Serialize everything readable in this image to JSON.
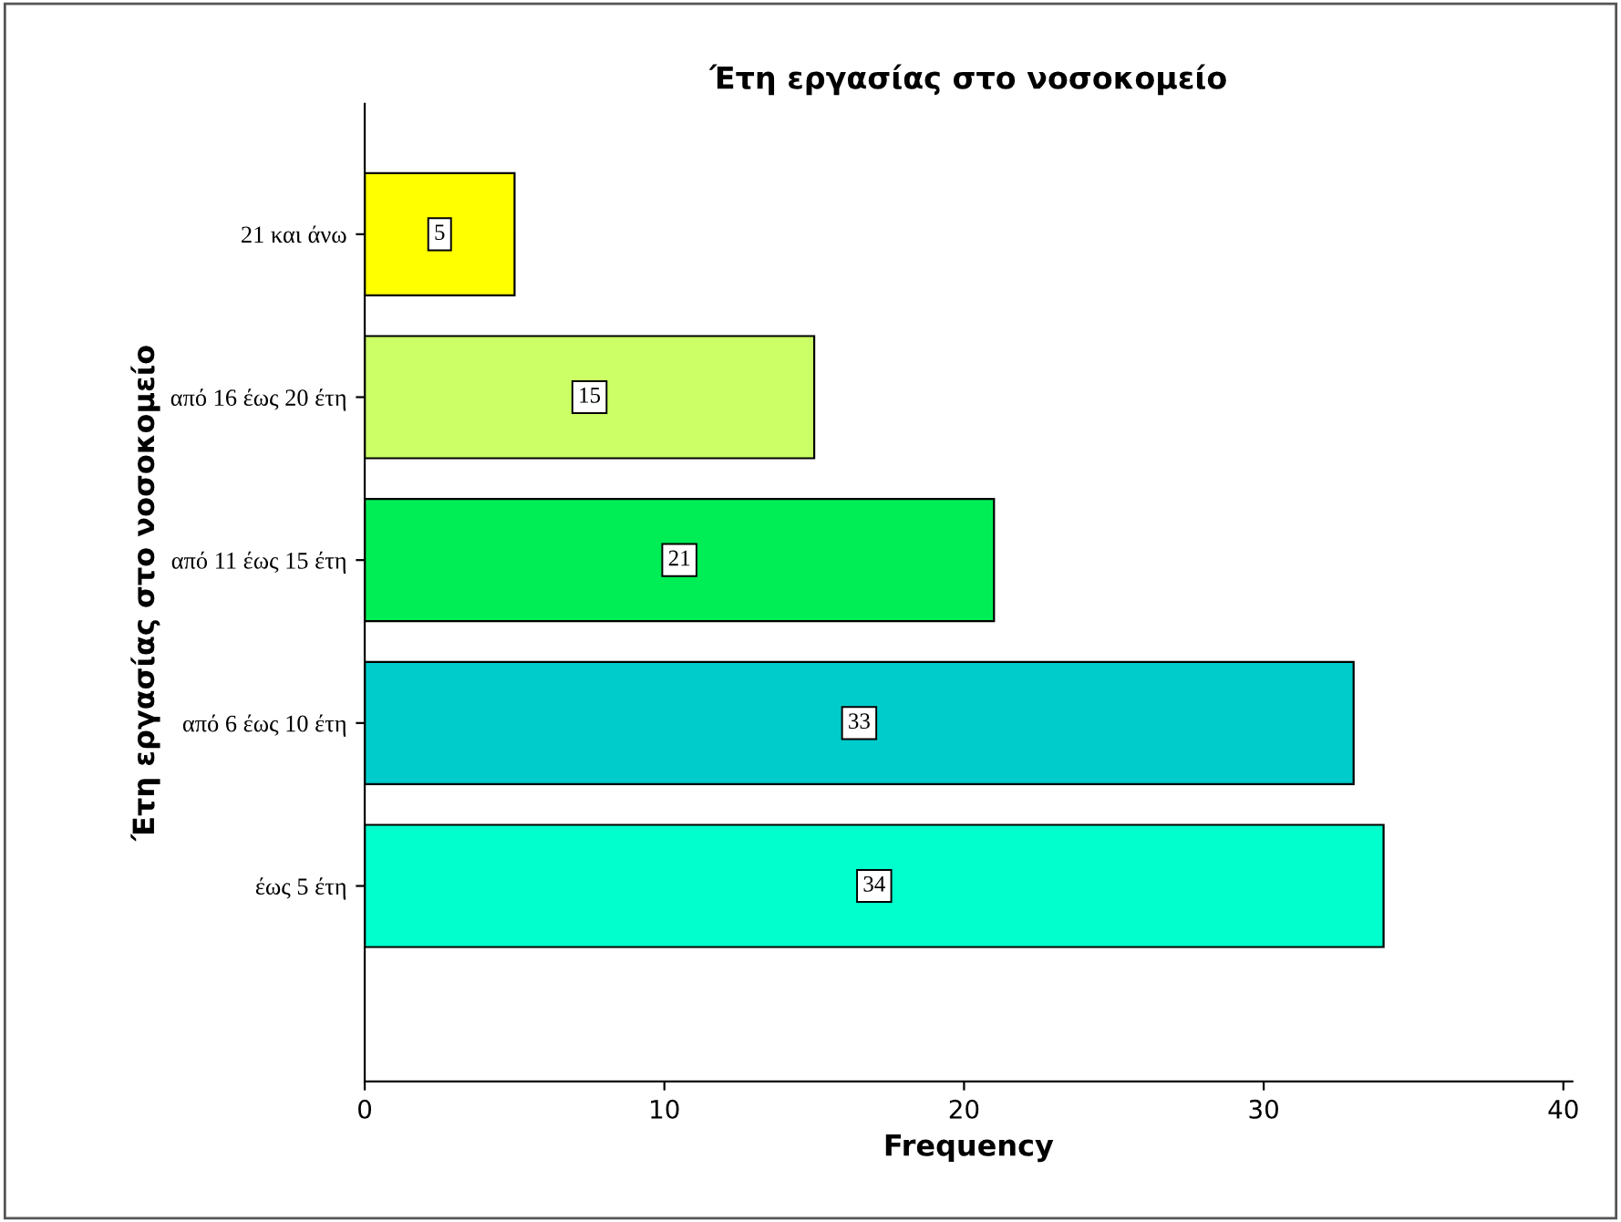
{
  "chart_data": {
    "type": "bar",
    "orientation": "horizontal",
    "title": "Έτη εργασίας στο νοσοκομείο",
    "xlabel": "Frequency",
    "ylabel": "Έτη εργασίας στο νοσοκομείο",
    "categories": [
      "21 και άνω",
      "από 16 έως 20 έτη",
      "από 11 έως 15 έτη",
      "από 6 έως 10 έτη",
      "έως 5 έτη"
    ],
    "values": [
      5,
      15,
      21,
      33,
      34
    ],
    "colors": [
      "#ffff00",
      "#ccff66",
      "#00ee55",
      "#00cccc",
      "#00ffcc"
    ],
    "xlim": [
      0,
      40.3
    ],
    "xticks": [
      0,
      10,
      20,
      30,
      40
    ],
    "data_labels": true,
    "grid": false,
    "legend": false
  }
}
